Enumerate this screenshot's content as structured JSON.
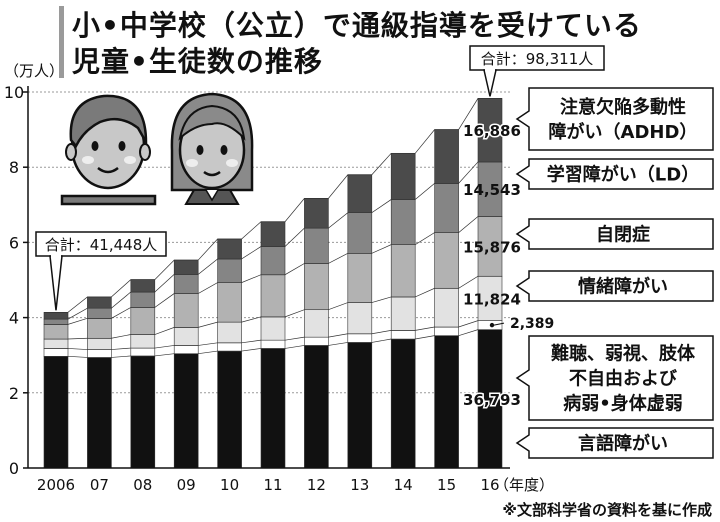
{
  "header": {
    "title_line1": "小•中学校（公立）で通級指導を受けている",
    "title_line2": "児童•生徒数の推移"
  },
  "source": "※文部科学省の資料を基に作成",
  "colors": {
    "gengo": "#111111",
    "nanchou": "#ffffff",
    "jouchou": "#e2e2e2",
    "jiheishou": "#b2b2b2",
    "gakushuu": "#858585",
    "adhd": "#4b4b4b"
  },
  "chart_data": {
    "type": "bar",
    "stacked": true,
    "unit_label": "（万人）",
    "x_unit": "（年度）",
    "categories": [
      "2006",
      "07",
      "08",
      "09",
      "10",
      "11",
      "12",
      "13",
      "14",
      "15",
      "16"
    ],
    "ylim": [
      0,
      10
    ],
    "yticks": [
      0,
      2,
      4,
      6,
      8,
      10
    ],
    "grid": true,
    "series": [
      {
        "name": "言語障がい",
        "key": "gengo",
        "values": [
          2.97,
          2.94,
          2.98,
          3.04,
          3.11,
          3.18,
          3.26,
          3.34,
          3.43,
          3.52,
          3.68
        ]
      },
      {
        "name": "難聴、弱視、肢体不自由および病弱•身体虚弱",
        "key": "nanchou",
        "values": [
          0.21,
          0.21,
          0.21,
          0.22,
          0.22,
          0.22,
          0.22,
          0.23,
          0.23,
          0.23,
          0.24
        ]
      },
      {
        "name": "情緒障がい",
        "key": "jouchou",
        "values": [
          0.25,
          0.3,
          0.36,
          0.48,
          0.55,
          0.62,
          0.73,
          0.83,
          0.89,
          1.03,
          1.18
        ]
      },
      {
        "name": "自閉症",
        "key": "jiheishou",
        "values": [
          0.39,
          0.53,
          0.72,
          0.9,
          1.05,
          1.12,
          1.23,
          1.31,
          1.39,
          1.48,
          1.59
        ]
      },
      {
        "name": "学習障がい（LD）",
        "key": "gakushuu",
        "values": [
          0.14,
          0.27,
          0.41,
          0.51,
          0.63,
          0.75,
          0.94,
          1.08,
          1.2,
          1.31,
          1.45
        ]
      },
      {
        "name": "注意欠陥多動性障がい（ADHD）",
        "key": "adhd",
        "values": [
          0.18,
          0.3,
          0.33,
          0.38,
          0.53,
          0.66,
          0.79,
          1.01,
          1.23,
          1.43,
          1.69
        ]
      }
    ],
    "legend": [
      {
        "key": "adhd",
        "lines": [
          "注意欠陥多動性",
          "障がい（ADHD）"
        ],
        "value_label": "16,886"
      },
      {
        "key": "gakushuu",
        "lines": [
          "学習障がい（LD）"
        ],
        "value_label": "14,543"
      },
      {
        "key": "jiheishou",
        "lines": [
          "自閉症"
        ],
        "value_label": "15,876"
      },
      {
        "key": "jouchou",
        "lines": [
          "情緒障がい"
        ],
        "value_label": "11,824"
      },
      {
        "key": "nanchou",
        "lines": [
          "難聴、弱視、肢体",
          "不自由および",
          "病弱•身体虚弱"
        ],
        "value_label": "2,389"
      },
      {
        "key": "gengo",
        "lines": [
          "言語障がい"
        ],
        "value_label": "36,793"
      }
    ],
    "annotations": {
      "first_total": "合計：41,448人",
      "last_total": "合計：98,311人"
    }
  }
}
